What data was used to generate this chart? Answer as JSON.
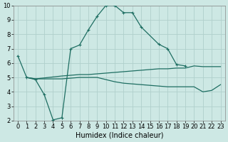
{
  "background_color": "#cde8e4",
  "grid_color": "#b0d0cc",
  "line_color": "#1e6e62",
  "xlabel": "Humidex (Indice chaleur)",
  "xlim": [
    -0.5,
    23.5
  ],
  "ylim": [
    2,
    10
  ],
  "xticks": [
    0,
    1,
    2,
    3,
    4,
    5,
    6,
    7,
    8,
    9,
    10,
    11,
    12,
    13,
    14,
    15,
    16,
    17,
    18,
    19,
    20,
    21,
    22,
    23
  ],
  "yticks": [
    2,
    3,
    4,
    5,
    6,
    7,
    8,
    9,
    10
  ],
  "xlabel_fontsize": 7,
  "tick_fontsize": 6,
  "curve1_x": [
    0,
    1,
    2,
    3,
    4,
    5,
    6,
    7,
    8,
    9,
    10,
    11,
    12,
    13,
    14,
    16,
    17,
    18,
    19
  ],
  "curve1_y": [
    6.5,
    5.0,
    4.85,
    3.8,
    2.05,
    2.2,
    7.0,
    7.25,
    8.3,
    9.25,
    10.0,
    10.0,
    9.5,
    9.5,
    8.5,
    7.3,
    7.0,
    5.9,
    5.8
  ],
  "curve2_x": [
    1,
    2,
    5,
    6,
    7,
    8,
    9,
    10,
    11,
    12,
    13,
    14,
    15,
    16,
    17,
    18,
    19,
    20,
    21,
    22,
    23
  ],
  "curve2_y": [
    5.0,
    4.9,
    5.1,
    5.15,
    5.2,
    5.2,
    5.25,
    5.3,
    5.35,
    5.4,
    5.45,
    5.5,
    5.55,
    5.6,
    5.6,
    5.65,
    5.65,
    5.8,
    5.75,
    5.75,
    5.75
  ],
  "curve3_x": [
    1,
    2,
    5,
    6,
    7,
    8,
    9,
    10,
    11,
    12,
    13,
    14,
    15,
    16,
    17,
    18,
    19,
    20,
    21,
    22,
    23
  ],
  "curve3_y": [
    5.0,
    4.9,
    4.9,
    4.95,
    5.0,
    5.0,
    5.0,
    4.85,
    4.7,
    4.6,
    4.55,
    4.5,
    4.45,
    4.4,
    4.35,
    4.35,
    4.35,
    4.35,
    4.0,
    4.1,
    4.5
  ]
}
